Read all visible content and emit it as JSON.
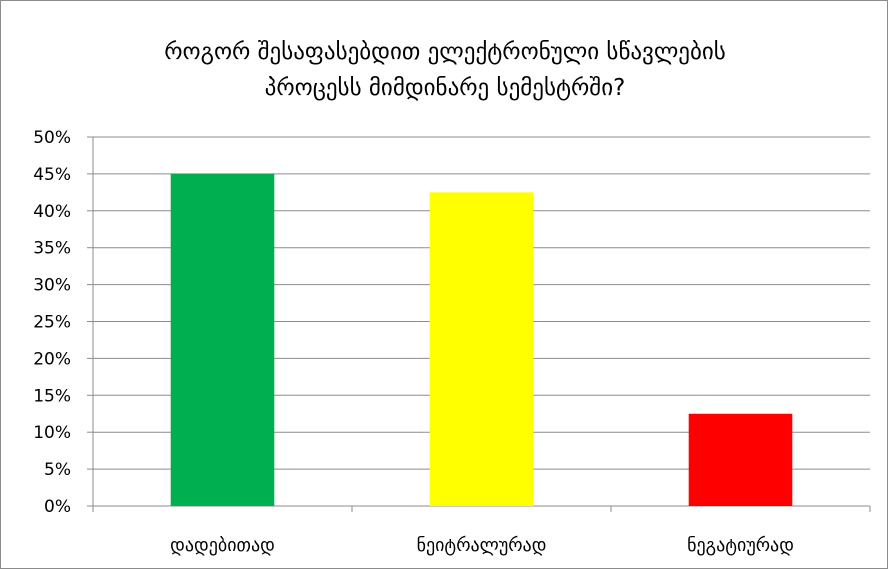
{
  "chart_data": {
    "type": "bar",
    "title_lines": [
      "როგორ შესაფასებდით ელექტრონული სწავლების",
      "პროცესს მიმდინარე სემესტრში?"
    ],
    "categories": [
      "დადებითად",
      "ნეიტრალურად",
      "ნეგატიურად"
    ],
    "values": [
      45,
      42.5,
      12.5
    ],
    "bar_colors": [
      "#00b050",
      "#ffff00",
      "#ff0000"
    ],
    "ylim": [
      0,
      50
    ],
    "yticks": [
      0,
      5,
      10,
      15,
      20,
      25,
      30,
      35,
      40,
      45,
      50
    ],
    "ytick_labels": [
      "0%",
      "5%",
      "10%",
      "15%",
      "20%",
      "25%",
      "30%",
      "35%",
      "40%",
      "45%",
      "50%"
    ],
    "grid": true,
    "grid_color": "#8c8c8c",
    "legend": "none"
  }
}
